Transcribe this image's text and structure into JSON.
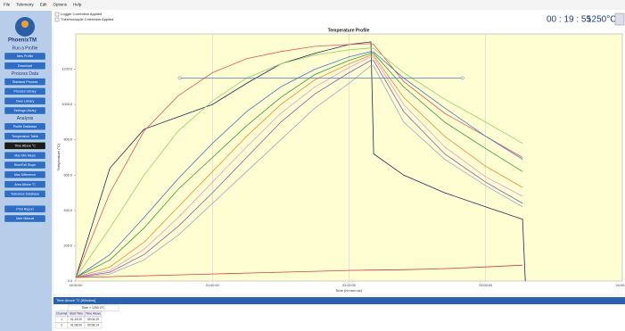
{
  "menu": [
    "File",
    "Telemetry",
    "Edit",
    "Options",
    "Help"
  ],
  "toolbar": {
    "checkboxes": [
      "Logger Correction Applied",
      "Thermocouple Correction Applied"
    ],
    "clock": "00 : 19 : 55",
    "temperature": "1250°C"
  },
  "sidebar": {
    "logo": "PhoenixTM",
    "sections": [
      {
        "title": "Run a Profile",
        "buttons": [
          "New Profile",
          "Download"
        ]
      },
      {
        "title": "Process Data",
        "buttons": [
          "Standard Process",
          "Process Library",
          "Oven Library",
          "Settings Library"
        ]
      },
      {
        "title": "Analysis",
        "buttons": [
          "Profile Database",
          "Temperature Table",
          "Time Above °C",
          "Max Min Mean",
          "Rise/Fall Slope",
          "Max Difference",
          "Area Above °C",
          "Tolerance Database"
        ]
      },
      {
        "buttons": [
          "Print Report",
          "User Manual"
        ]
      }
    ]
  },
  "chart_data": {
    "type": "line",
    "title": "Temperature Profile",
    "x_label": "Time (hh:mm:ss)",
    "y_label": "Temperature (°C)",
    "x": [
      0,
      0.25,
      0.5,
      0.75,
      1,
      1.25,
      1.5,
      1.75,
      2,
      2.16,
      2.18,
      2.4,
      2.7,
      3,
      3.27,
      3.29
    ],
    "series": [
      {
        "color": "#1f2a5a",
        "values": [
          20,
          640,
          860,
          930,
          1000,
          1120,
          1230,
          1290,
          1340,
          1355,
          720,
          600,
          500,
          420,
          350,
          0
        ]
      },
      {
        "color": "#e05a5a",
        "values": [
          20,
          500,
          850,
          1050,
          1180,
          1260,
          1300,
          1330,
          1340,
          1345,
          1340,
          1130,
          950,
          820,
          700,
          null
        ]
      },
      {
        "color": "#8fd36a",
        "values": [
          20,
          300,
          600,
          850,
          1020,
          1150,
          1230,
          1280,
          1310,
          1320,
          1318,
          1180,
          1030,
          900,
          780,
          null
        ]
      },
      {
        "color": "#4a78c8",
        "values": [
          20,
          150,
          360,
          580,
          780,
          960,
          1100,
          1200,
          1270,
          1300,
          1298,
          1150,
          980,
          820,
          690,
          null
        ]
      },
      {
        "color": "#2f9e3a",
        "values": [
          20,
          120,
          300,
          520,
          700,
          880,
          1040,
          1170,
          1250,
          1290,
          1290,
          1100,
          900,
          750,
          620,
          null
        ]
      },
      {
        "color": "#f08a3a",
        "values": [
          20,
          80,
          220,
          420,
          620,
          820,
          1000,
          1140,
          1230,
          1280,
          1278,
          1040,
          820,
          650,
          530,
          null
        ]
      },
      {
        "color": "#e79ad0",
        "values": [
          20,
          60,
          180,
          360,
          560,
          760,
          950,
          1100,
          1210,
          1270,
          1268,
          1000,
          760,
          590,
          480,
          null
        ]
      },
      {
        "color": "#8a5ab8",
        "values": [
          20,
          50,
          150,
          310,
          500,
          700,
          900,
          1060,
          1180,
          1250,
          1248,
          960,
          720,
          560,
          440,
          null
        ]
      },
      {
        "color": "#9aa8c8",
        "values": [
          20,
          40,
          120,
          260,
          440,
          620,
          800,
          980,
          1120,
          1220,
          1218,
          900,
          690,
          540,
          420,
          null
        ]
      },
      {
        "color": "#d04040",
        "values": [
          20,
          25,
          30,
          35,
          40,
          45,
          50,
          55,
          60,
          62,
          62,
          64,
          70,
          80,
          90,
          null
        ]
      }
    ],
    "threshold_line": {
      "color": "#4a78b8",
      "y": 1150,
      "x": [
        0.76,
        2.83
      ]
    },
    "xlim": [
      0,
      4
    ],
    "ylim": [
      0,
      1400
    ],
    "xticks": [
      {
        "value": 0,
        "label": "00:00:00"
      },
      {
        "value": 1,
        "label": "01:00:00"
      },
      {
        "value": 2,
        "label": "02:00:00"
      },
      {
        "value": 3,
        "label": "03:00:00"
      },
      {
        "value": 4,
        "label": "04:00:00"
      }
    ],
    "yticks": [
      {
        "value": 0,
        "label": "0.0"
      },
      {
        "value": 200,
        "label": "200.0"
      },
      {
        "value": 400,
        "label": "400.0"
      },
      {
        "value": 600,
        "label": "600.0"
      },
      {
        "value": 800,
        "label": "800.0"
      },
      {
        "value": 1000,
        "label": "1000.0"
      },
      {
        "value": 1200,
        "label": "1200.0"
      }
    ],
    "grid": true
  },
  "bottom_panel": {
    "title": "Time Above °C [Window]",
    "table": {
      "caption": "Time > 1250.0°C",
      "columns": [
        "Channel",
        "Start Time",
        "Time Above"
      ],
      "rows": [
        [
          "1",
          "01:15:20",
          "00:04:15"
        ],
        [
          "2",
          "01:08:00",
          "00:08:14"
        ]
      ]
    }
  }
}
